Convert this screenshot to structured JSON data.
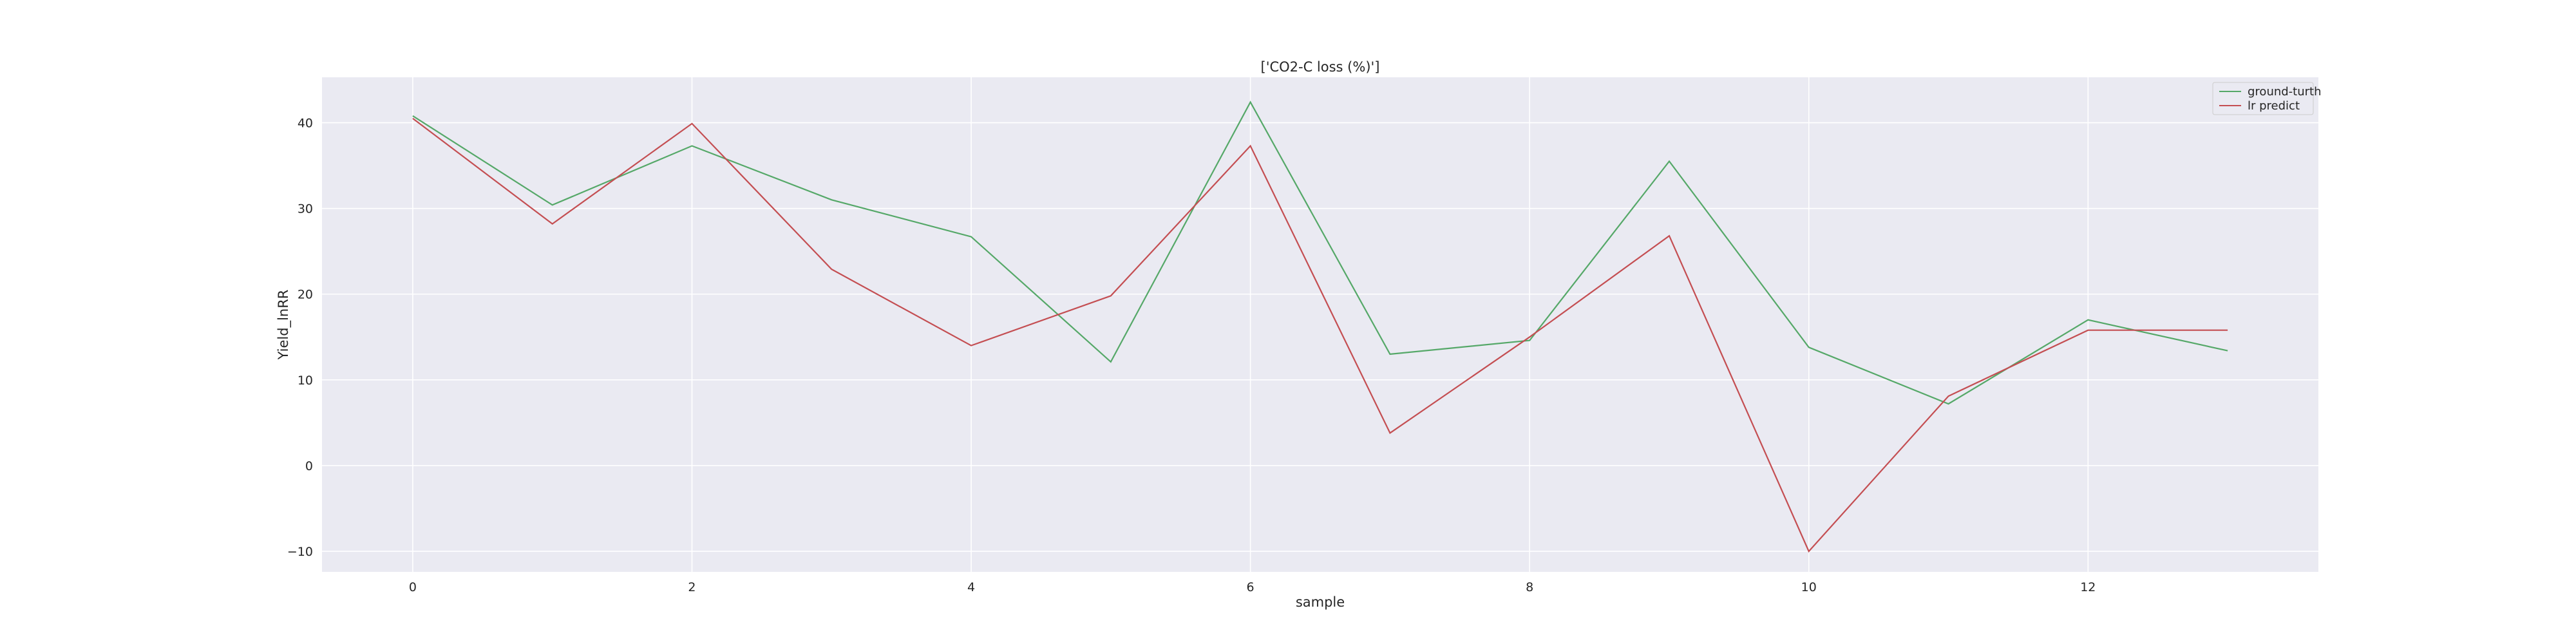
{
  "chart_data": {
    "type": "line",
    "title": "['CO2-C loss (%)']",
    "xlabel": "sample",
    "ylabel": "Yield_lnRR",
    "x": [
      0,
      1,
      2,
      3,
      4,
      5,
      6,
      7,
      8,
      9,
      10,
      11,
      12,
      13
    ],
    "xlim": [
      -0.65,
      13.65
    ],
    "ylim": [
      -12.4,
      45.3
    ],
    "xticks": [
      0,
      2,
      4,
      6,
      8,
      10,
      12
    ],
    "yticks": [
      -10,
      0,
      10,
      20,
      30,
      40
    ],
    "grid": true,
    "legend_position": "top-right",
    "series": [
      {
        "name": "ground-turth",
        "color": "#55a868",
        "values": [
          40.8,
          30.4,
          37.3,
          31.0,
          26.7,
          12.1,
          42.4,
          13.0,
          14.6,
          35.5,
          13.8,
          7.2,
          17.0,
          13.4
        ]
      },
      {
        "name": "lr predict",
        "color": "#c44e52",
        "values": [
          40.5,
          28.2,
          39.9,
          22.9,
          14.0,
          19.8,
          37.3,
          3.8,
          15.0,
          26.8,
          -10.0,
          8.1,
          15.8,
          15.8
        ]
      }
    ]
  }
}
